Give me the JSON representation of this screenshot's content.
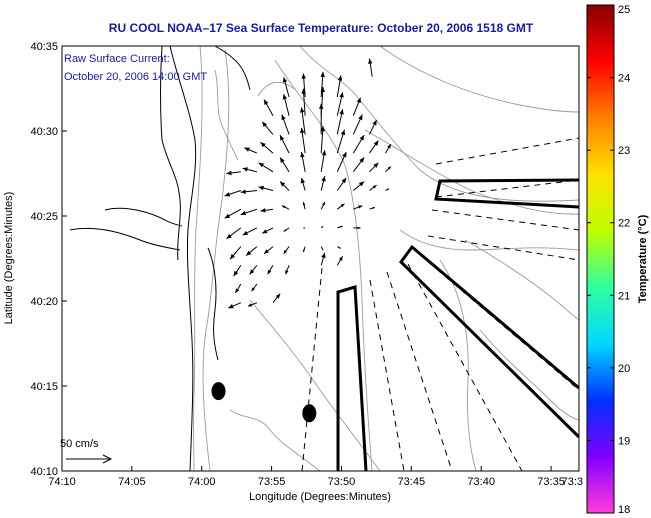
{
  "chart_data": {
    "type": "map",
    "title": "RU COOL  NOAA–17  Sea Surface Temperature:  October 20, 2006 1518 GMT",
    "annotation_lines": [
      "Raw Surface Current:",
      "October 20, 2006 14:00 GMT"
    ],
    "xlabel": "Longitude (Degrees:Minutes)",
    "ylabel": "Latitude (Degrees:Minutes)",
    "xlim_minutes_west": [
      -610,
      -573
    ],
    "ylim_minutes_north": [
      2410,
      2435
    ],
    "x_ticks": [
      {
        "value": -610,
        "label": "74:10"
      },
      {
        "value": -605,
        "label": "74:05"
      },
      {
        "value": -600,
        "label": "74:00"
      },
      {
        "value": -595,
        "label": "73:55"
      },
      {
        "value": -590,
        "label": "73:50"
      },
      {
        "value": -585,
        "label": "73:45"
      },
      {
        "value": -580,
        "label": "73:40"
      },
      {
        "value": -575,
        "label": "73:35"
      },
      {
        "value": -573,
        "label": "73:3"
      }
    ],
    "y_ticks": [
      {
        "value": 2410,
        "label": "40:10"
      },
      {
        "value": 2415,
        "label": "40:15"
      },
      {
        "value": 2420,
        "label": "40:20"
      },
      {
        "value": 2425,
        "label": "40:25"
      },
      {
        "value": 2430,
        "label": "40:30"
      },
      {
        "value": 2435,
        "label": "40:35"
      }
    ],
    "colorbar": {
      "label": "Temperature (°C)",
      "range": [
        18,
        25
      ],
      "ticks": [
        "18",
        "19",
        "20",
        "21",
        "22",
        "23",
        "24",
        "25"
      ],
      "colors": [
        "#ff3dd8",
        "#8000ff",
        "#0030ff",
        "#00d8ff",
        "#30ffa0",
        "#c0ff00",
        "#ffe000",
        "#ff8000",
        "#ff0000",
        "#8a0000"
      ]
    },
    "scale_arrow_label": "50 cm/s",
    "scale_arrow_cm_s": 50,
    "current_grid_cm_s": [
      [
        null,
        null,
        null,
        null,
        null,
        {
          "u": -6,
          "v": 22
        },
        {
          "u": -2,
          "v": 26
        },
        {
          "u": 2,
          "v": 28
        },
        {
          "u": 4,
          "v": 24
        },
        null,
        null,
        null,
        null,
        null
      ],
      [
        null,
        null,
        null,
        null,
        {
          "u": -10,
          "v": 18
        },
        {
          "u": -6,
          "v": 24
        },
        {
          "u": -2,
          "v": 30
        },
        {
          "u": 2,
          "v": 32
        },
        {
          "u": 6,
          "v": 26
        },
        {
          "u": 8,
          "v": 20
        },
        null,
        null,
        null,
        null
      ],
      [
        null,
        null,
        null,
        null,
        {
          "u": -12,
          "v": 14
        },
        {
          "u": -8,
          "v": 22
        },
        {
          "u": -4,
          "v": 30
        },
        {
          "u": 0,
          "v": 34
        },
        {
          "u": 6,
          "v": 28
        },
        {
          "u": 10,
          "v": 22
        },
        {
          "u": 8,
          "v": 16
        },
        null,
        null,
        null
      ],
      [
        null,
        null,
        null,
        {
          "u": -14,
          "v": 6
        },
        {
          "u": -14,
          "v": 12
        },
        {
          "u": -10,
          "v": 20
        },
        {
          "u": -4,
          "v": 28
        },
        {
          "u": 2,
          "v": 30
        },
        {
          "u": 8,
          "v": 26
        },
        {
          "u": 12,
          "v": 20
        },
        {
          "u": 10,
          "v": 14
        },
        {
          "u": 6,
          "v": 10
        },
        null,
        null
      ],
      [
        null,
        null,
        {
          "u": -16,
          "v": -2
        },
        {
          "u": -16,
          "v": 4
        },
        {
          "u": -16,
          "v": 10
        },
        {
          "u": -10,
          "v": 16
        },
        {
          "u": -4,
          "v": 22
        },
        {
          "u": 4,
          "v": 24
        },
        {
          "u": 10,
          "v": 22
        },
        {
          "u": 12,
          "v": 16
        },
        {
          "u": 10,
          "v": 10
        },
        {
          "u": 6,
          "v": 6
        },
        null,
        null
      ],
      [
        null,
        null,
        {
          "u": -18,
          "v": -6
        },
        {
          "u": -18,
          "v": -2
        },
        {
          "u": -16,
          "v": 4
        },
        {
          "u": -10,
          "v": 10
        },
        {
          "u": -4,
          "v": 14
        },
        {
          "u": 4,
          "v": 16
        },
        {
          "u": 10,
          "v": 14
        },
        {
          "u": 12,
          "v": 10
        },
        {
          "u": 8,
          "v": 6
        },
        {
          "u": 4,
          "v": 2
        },
        null,
        null
      ],
      [
        null,
        null,
        {
          "u": -18,
          "v": -10
        },
        {
          "u": -18,
          "v": -6
        },
        {
          "u": -14,
          "v": -2
        },
        {
          "u": -8,
          "v": 4
        },
        {
          "u": -2,
          "v": 8
        },
        {
          "u": 4,
          "v": 8
        },
        {
          "u": 8,
          "v": 6
        },
        {
          "u": 10,
          "v": 4
        },
        {
          "u": 6,
          "v": 2
        },
        null,
        null,
        null
      ],
      [
        null,
        null,
        {
          "u": -16,
          "v": -12
        },
        {
          "u": -16,
          "v": -8
        },
        {
          "u": -12,
          "v": -6
        },
        {
          "u": -6,
          "v": -4
        },
        {
          "u": -2,
          "v": 0
        },
        {
          "u": 2,
          "v": 2
        },
        {
          "u": 6,
          "v": 2
        },
        {
          "u": 8,
          "v": 0
        },
        null,
        null,
        null,
        null
      ],
      [
        null,
        null,
        {
          "u": -12,
          "v": -14
        },
        {
          "u": -12,
          "v": -10
        },
        {
          "u": -10,
          "v": -8
        },
        {
          "u": -6,
          "v": -8
        },
        {
          "u": -2,
          "v": -6
        },
        {
          "u": 2,
          "v": -4
        },
        {
          "u": 4,
          "v": -2
        },
        null,
        null,
        null,
        null,
        null
      ],
      [
        null,
        null,
        {
          "u": -8,
          "v": -12
        },
        {
          "u": -8,
          "v": -10
        },
        {
          "u": -6,
          "v": -10
        },
        {
          "u": -4,
          "v": -10
        },
        null,
        {
          "u": 4,
          "v": 14
        },
        {
          "u": 6,
          "v": 10
        },
        null,
        null,
        null,
        null,
        null
      ],
      [
        null,
        null,
        {
          "u": -6,
          "v": -10
        },
        {
          "u": -6,
          "v": -8
        },
        null,
        null,
        null,
        null,
        null,
        null,
        null,
        null,
        null,
        null
      ],
      [
        null,
        null,
        {
          "u": -14,
          "v": -6
        },
        {
          "u": -10,
          "v": -4
        },
        {
          "u": 8,
          "v": 10
        },
        null,
        null,
        null,
        null,
        null,
        null,
        null,
        null,
        null
      ]
    ],
    "isolated_current_vectors_cm_s": [
      {
        "lon": -587.8,
        "lat": 2433.2,
        "u": -3,
        "v": 20
      }
    ],
    "buoy_markers": [
      {
        "lon": -598.8,
        "lat": 2414.7
      },
      {
        "lon": -592.3,
        "lat": 2413.4
      }
    ],
    "grid": false,
    "legend": "right colorbar"
  }
}
